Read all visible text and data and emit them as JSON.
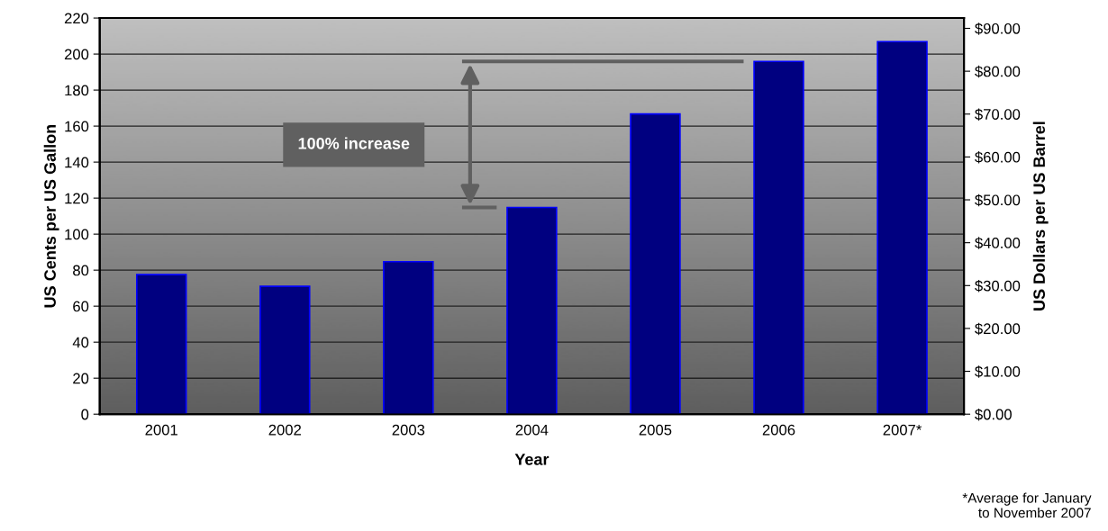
{
  "chart_data": {
    "type": "bar",
    "categories": [
      "2001",
      "2002",
      "2003",
      "2004",
      "2005",
      "2006",
      "2007*"
    ],
    "values": [
      77.5,
      71,
      84.7,
      114.8,
      166.7,
      195.9,
      206.9
    ],
    "color": "#000080",
    "xlabel": "Year",
    "ylabel": "US Cents per US Gallon",
    "y2label": "US Dollars per US Barrel",
    "ylim": [
      0,
      220
    ],
    "yticks": [
      0,
      20,
      40,
      60,
      80,
      100,
      120,
      140,
      160,
      180,
      200,
      220
    ],
    "y2lim": [
      0,
      92.4
    ],
    "y2ticks": [
      {
        "value": 0,
        "label": "$0.00"
      },
      {
        "value": 10,
        "label": "$10.00"
      },
      {
        "value": 20,
        "label": "$20.00"
      },
      {
        "value": 30,
        "label": "$30.00"
      },
      {
        "value": 40,
        "label": "$40.00"
      },
      {
        "value": 50,
        "label": "$50.00"
      },
      {
        "value": 60,
        "label": "$60.00"
      },
      {
        "value": 70,
        "label": "$70.00"
      },
      {
        "value": 80,
        "label": "$80.00"
      },
      {
        "value": 90,
        "label": "$90.00"
      }
    ],
    "grid": "y",
    "legend": false,
    "annotations": [
      "100% increase",
      "*Average for January\nto November 2007"
    ]
  }
}
